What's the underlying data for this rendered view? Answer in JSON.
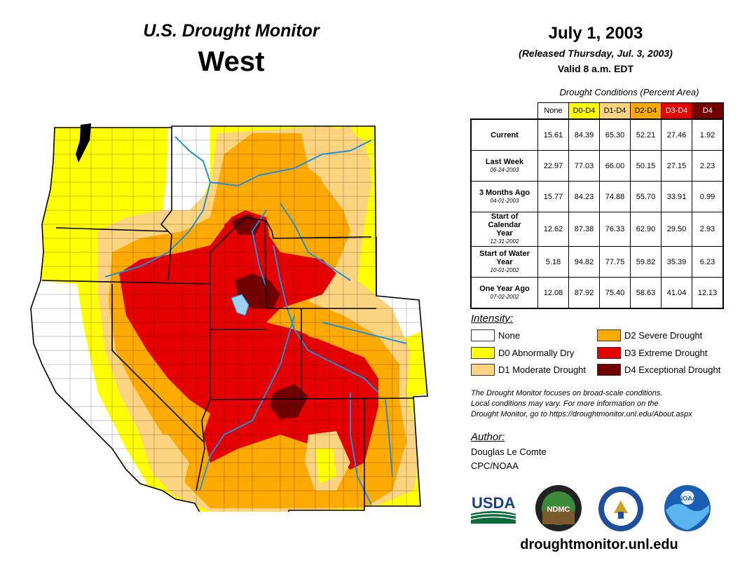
{
  "header": {
    "title": "U.S. Drought Monitor",
    "region": "West",
    "date": "July 1, 2003",
    "released": "(Released Thursday, Jul. 3, 2003)",
    "valid": "Valid 8 a.m. EDT"
  },
  "table": {
    "caption": "Drought Conditions (Percent Area)",
    "columns": [
      {
        "label": "None",
        "color": "#ffffff",
        "text_color": "#000000"
      },
      {
        "label": "D0-D4",
        "color": "#ffff00",
        "text_color": "#000000"
      },
      {
        "label": "D1-D4",
        "color": "#fcd37f",
        "text_color": "#000000"
      },
      {
        "label": "D2-D4",
        "color": "#ffaa00",
        "text_color": "#000000"
      },
      {
        "label": "D3-D4",
        "color": "#e60000",
        "text_color": "#ffffff"
      },
      {
        "label": "D4",
        "color": "#730000",
        "text_color": "#ffffff"
      }
    ],
    "rows": [
      {
        "label": "Current",
        "date": "",
        "values": [
          "15.61",
          "84.39",
          "65.30",
          "52.21",
          "27.46",
          "1.92"
        ]
      },
      {
        "label": "Last Week",
        "date": "06-24-2003",
        "values": [
          "22.97",
          "77.03",
          "66.00",
          "50.15",
          "27.15",
          "2.23"
        ]
      },
      {
        "label": "3 Months Ago",
        "date": "04-01-2003",
        "values": [
          "15.77",
          "84.23",
          "74.88",
          "55.70",
          "33.91",
          "0.99"
        ]
      },
      {
        "label": "Start of Calendar Year",
        "date": "12-31-2002",
        "values": [
          "12.62",
          "87.38",
          "76.33",
          "62.90",
          "29.50",
          "2.93"
        ]
      },
      {
        "label": "Start of Water Year",
        "date": "10-01-2002",
        "values": [
          "5.18",
          "94.82",
          "77.75",
          "59.82",
          "35.39",
          "6.23"
        ]
      },
      {
        "label": "One Year Ago",
        "date": "07-02-2002",
        "values": [
          "12.08",
          "87.92",
          "75.40",
          "58.63",
          "41.04",
          "12.13"
        ]
      }
    ]
  },
  "legend": {
    "title": "Intensity:",
    "items": [
      {
        "label": "None",
        "color": "#ffffff"
      },
      {
        "label": "D0 Abnormally Dry",
        "color": "#ffff00"
      },
      {
        "label": "D1 Moderate Drought",
        "color": "#fcd37f"
      },
      {
        "label": "D2 Severe Drought",
        "color": "#ffaa00"
      },
      {
        "label": "D3 Extreme Drought",
        "color": "#e60000"
      },
      {
        "label": "D4 Exceptional Drought",
        "color": "#730000"
      }
    ]
  },
  "note": {
    "line1": "The Drought Monitor focuses on broad-scale conditions.",
    "line2": "Local conditions may vary. For more information on the",
    "line3": "Drought Monitor, go to https://droughtmonitor.unl.edu/About.aspx"
  },
  "author": {
    "heading": "Author:",
    "name": "Douglas Le Comte",
    "org": "CPC/NOAA"
  },
  "logos": {
    "usda": "USDA",
    "ndmc": "NDMC",
    "noaa": "NOAA"
  },
  "footer": {
    "url": "droughtmonitor.unl.edu"
  },
  "colors": {
    "none": "#ffffff",
    "d0": "#ffff00",
    "d1": "#fcd37f",
    "d2": "#ffaa00",
    "d3": "#e60000",
    "d4": "#730000",
    "water": "#1f8fdf",
    "lake": "#9fd0f0"
  }
}
